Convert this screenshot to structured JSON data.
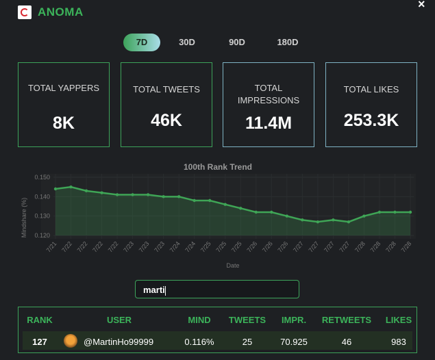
{
  "header": {
    "title": "ANOMA",
    "close": "×"
  },
  "tabs": [
    {
      "label": "7D",
      "active": true
    },
    {
      "label": "30D",
      "active": false
    },
    {
      "label": "90D",
      "active": false
    },
    {
      "label": "180D",
      "active": false
    }
  ],
  "cards": [
    {
      "label": "TOTAL YAPPERS",
      "value": "8K"
    },
    {
      "label": "TOTAL TWEETS",
      "value": "46K"
    },
    {
      "label": "TOTAL IMPRESSIONS",
      "value": "11.4M"
    },
    {
      "label": "TOTAL LIKES",
      "value": "253.3K"
    }
  ],
  "chart_data": {
    "type": "line",
    "title": "100th Rank Trend",
    "x_label": "Date",
    "y_label": "Mindshare (%)",
    "categories": [
      "7/21",
      "7/22",
      "7/22",
      "7/22",
      "7/22",
      "7/23",
      "7/23",
      "7/23",
      "7/24",
      "7/24",
      "7/25",
      "7/25",
      "7/25",
      "7/26",
      "7/26",
      "7/26",
      "7/27",
      "7/27",
      "7/27",
      "7/27",
      "7/28",
      "7/28",
      "7/28",
      "7/28"
    ],
    "values": [
      0.144,
      0.145,
      0.143,
      0.142,
      0.141,
      0.141,
      0.141,
      0.14,
      0.14,
      0.138,
      0.138,
      0.136,
      0.134,
      0.132,
      0.132,
      0.13,
      0.128,
      0.127,
      0.128,
      0.127,
      0.13,
      0.132,
      0.132,
      0.132
    ],
    "color": "#3fa556",
    "ylim": [
      0.12,
      0.15
    ],
    "yticks": [
      {
        "value": 0.12,
        "label": "0.120"
      },
      {
        "value": 0.13,
        "label": "0.130"
      },
      {
        "value": 0.14,
        "label": "0.140"
      },
      {
        "value": 0.15,
        "label": "0.150"
      }
    ],
    "grid": true
  },
  "search": {
    "value": "marti"
  },
  "table": {
    "headers": [
      "RANK",
      "USER",
      "MIND",
      "TWEETS",
      "IMPR.",
      "RETWEETS",
      "LIKES"
    ],
    "rows": [
      [
        "127",
        "@MartinHo99999",
        "0.116%",
        "25",
        "70.925",
        "46",
        "983"
      ]
    ]
  }
}
